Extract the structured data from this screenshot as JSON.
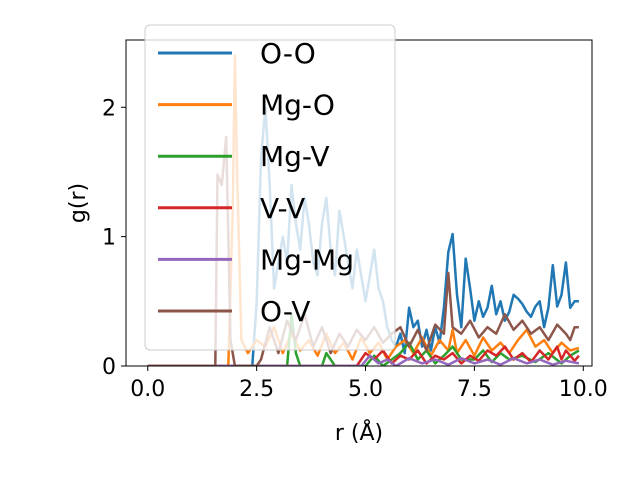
{
  "chart_data": {
    "type": "line",
    "xlabel": "r (Å)",
    "ylabel": "g(r)",
    "xlim": [
      -0.5,
      10.2
    ],
    "ylim": [
      0,
      2.52
    ],
    "xticks": [
      0.0,
      2.5,
      5.0,
      7.5,
      10.0
    ],
    "xtick_labels": [
      "0.0",
      "2.5",
      "5.0",
      "7.5",
      "10.0"
    ],
    "yticks": [
      0,
      1,
      2
    ],
    "ytick_labels": [
      "0",
      "1",
      "2"
    ],
    "grid": false,
    "legend_placement": "top-left",
    "series": [
      {
        "name": "O-O",
        "color": "#1f77b4",
        "points": [
          [
            0,
            0
          ],
          [
            2.4,
            0
          ],
          [
            2.5,
            0.5
          ],
          [
            2.6,
            1.6
          ],
          [
            2.7,
            2.0
          ],
          [
            2.8,
            1.4
          ],
          [
            2.9,
            0.6
          ],
          [
            3.0,
            0.8
          ],
          [
            3.1,
            1.0
          ],
          [
            3.2,
            0.8
          ],
          [
            3.3,
            1.4
          ],
          [
            3.4,
            1.1
          ],
          [
            3.5,
            0.9
          ],
          [
            3.6,
            1.3
          ],
          [
            3.7,
            1.1
          ],
          [
            3.8,
            0.8
          ],
          [
            3.9,
            0.7
          ],
          [
            4.0,
            1.1
          ],
          [
            4.1,
            1.3
          ],
          [
            4.2,
            0.9
          ],
          [
            4.3,
            0.7
          ],
          [
            4.4,
            1.2
          ],
          [
            4.5,
            1.0
          ],
          [
            4.6,
            0.8
          ],
          [
            4.7,
            0.6
          ],
          [
            4.8,
            0.9
          ],
          [
            4.9,
            0.7
          ],
          [
            5.0,
            0.5
          ],
          [
            5.1,
            0.7
          ],
          [
            5.2,
            0.9
          ],
          [
            5.3,
            0.6
          ],
          [
            5.4,
            0.5
          ],
          [
            5.5,
            0.3
          ],
          [
            5.6,
            0.2
          ],
          [
            5.7,
            0.15
          ],
          [
            5.8,
            0.25
          ],
          [
            5.9,
            0.1
          ],
          [
            6.0,
            0.45
          ],
          [
            6.1,
            0.3
          ],
          [
            6.2,
            0.35
          ],
          [
            6.3,
            0.15
          ],
          [
            6.4,
            0.28
          ],
          [
            6.5,
            0.12
          ],
          [
            6.6,
            0.3
          ],
          [
            6.7,
            0.18
          ],
          [
            6.8,
            0.45
          ],
          [
            6.9,
            0.88
          ],
          [
            7.0,
            1.02
          ],
          [
            7.1,
            0.55
          ],
          [
            7.2,
            0.3
          ],
          [
            7.3,
            0.83
          ],
          [
            7.4,
            0.6
          ],
          [
            7.5,
            0.35
          ],
          [
            7.6,
            0.5
          ],
          [
            7.7,
            0.38
          ],
          [
            7.8,
            0.45
          ],
          [
            7.9,
            0.62
          ],
          [
            8.0,
            0.4
          ],
          [
            8.1,
            0.5
          ],
          [
            8.2,
            0.35
          ],
          [
            8.3,
            0.42
          ],
          [
            8.4,
            0.55
          ],
          [
            8.5,
            0.52
          ],
          [
            8.6,
            0.48
          ],
          [
            8.7,
            0.42
          ],
          [
            8.8,
            0.38
          ],
          [
            8.9,
            0.46
          ],
          [
            9.0,
            0.5
          ],
          [
            9.1,
            0.3
          ],
          [
            9.2,
            0.45
          ],
          [
            9.3,
            0.78
          ],
          [
            9.4,
            0.46
          ],
          [
            9.5,
            0.55
          ],
          [
            9.6,
            0.8
          ],
          [
            9.7,
            0.45
          ],
          [
            9.8,
            0.5
          ],
          [
            9.9,
            0.5
          ]
        ]
      },
      {
        "name": "Mg-O",
        "color": "#ff7f0e",
        "points": [
          [
            0,
            0
          ],
          [
            1.85,
            0
          ],
          [
            1.95,
            1.2
          ],
          [
            2.0,
            2.4
          ],
          [
            2.05,
            1.5
          ],
          [
            2.15,
            0.2
          ],
          [
            2.3,
            0.1
          ],
          [
            2.5,
            0.2
          ],
          [
            2.7,
            0.15
          ],
          [
            2.9,
            0.3
          ],
          [
            3.1,
            0.1
          ],
          [
            3.3,
            0.25
          ],
          [
            3.5,
            0.12
          ],
          [
            3.7,
            0.2
          ],
          [
            3.9,
            0.08
          ],
          [
            4.1,
            0.25
          ],
          [
            4.3,
            0.1
          ],
          [
            4.5,
            0.18
          ],
          [
            4.7,
            0.05
          ],
          [
            4.9,
            0.22
          ],
          [
            5.1,
            0.1
          ],
          [
            5.3,
            0.18
          ],
          [
            5.5,
            0.05
          ],
          [
            5.7,
            0.15
          ],
          [
            5.9,
            0.2
          ],
          [
            6.1,
            0.1
          ],
          [
            6.3,
            0.22
          ],
          [
            6.5,
            0.08
          ],
          [
            6.7,
            0.2
          ],
          [
            6.9,
            0.12
          ],
          [
            7.0,
            0.28
          ],
          [
            7.1,
            0.1
          ],
          [
            7.3,
            0.2
          ],
          [
            7.5,
            0.08
          ],
          [
            7.7,
            0.22
          ],
          [
            7.9,
            0.12
          ],
          [
            8.1,
            0.18
          ],
          [
            8.3,
            0.1
          ],
          [
            8.5,
            0.2
          ],
          [
            8.7,
            0.28
          ],
          [
            8.9,
            0.15
          ],
          [
            9.1,
            0.2
          ],
          [
            9.3,
            0.1
          ],
          [
            9.5,
            0.18
          ],
          [
            9.7,
            0.12
          ],
          [
            9.9,
            0.14
          ]
        ]
      },
      {
        "name": "Mg-V",
        "color": "#2ca02c",
        "points": [
          [
            0,
            0
          ],
          [
            3.2,
            0
          ],
          [
            3.3,
            0.4
          ],
          [
            3.4,
            0.1
          ],
          [
            3.5,
            0
          ],
          [
            4.0,
            0
          ],
          [
            4.1,
            0.1
          ],
          [
            4.3,
            0
          ],
          [
            5.0,
            0
          ],
          [
            5.2,
            0.08
          ],
          [
            5.4,
            0
          ],
          [
            5.8,
            0.1
          ],
          [
            6.0,
            0.18
          ],
          [
            6.2,
            0.05
          ],
          [
            6.4,
            0.12
          ],
          [
            6.6,
            0.02
          ],
          [
            6.8,
            0.08
          ],
          [
            7.0,
            0.15
          ],
          [
            7.2,
            0.05
          ],
          [
            7.5,
            0.05
          ],
          [
            7.7,
            0.12
          ],
          [
            7.9,
            0.03
          ],
          [
            8.1,
            0.1
          ],
          [
            8.3,
            0.05
          ],
          [
            8.6,
            0.08
          ],
          [
            8.9,
            0.03
          ],
          [
            9.2,
            0.1
          ],
          [
            9.5,
            0.02
          ],
          [
            9.7,
            0.08
          ],
          [
            9.9,
            0.12
          ]
        ]
      },
      {
        "name": "V-V",
        "color": "#d62728",
        "points": [
          [
            0,
            0
          ],
          [
            4.8,
            0
          ],
          [
            5.0,
            0.1
          ],
          [
            5.2,
            0.05
          ],
          [
            5.4,
            0.12
          ],
          [
            5.6,
            0.02
          ],
          [
            5.8,
            0.08
          ],
          [
            6.0,
            0.05
          ],
          [
            6.2,
            0.12
          ],
          [
            6.4,
            0.02
          ],
          [
            6.6,
            0.08
          ],
          [
            6.8,
            0.05
          ],
          [
            7.0,
            0.1
          ],
          [
            7.2,
            0.02
          ],
          [
            7.4,
            0.08
          ],
          [
            7.6,
            0.04
          ],
          [
            7.8,
            0.12
          ],
          [
            8.0,
            0.08
          ],
          [
            8.2,
            0.15
          ],
          [
            8.4,
            0.05
          ],
          [
            8.6,
            0.1
          ],
          [
            8.8,
            0.03
          ],
          [
            9.0,
            0.12
          ],
          [
            9.2,
            0.05
          ],
          [
            9.4,
            0.15
          ],
          [
            9.5,
            0.05
          ],
          [
            9.6,
            0.12
          ],
          [
            9.8,
            0.04
          ],
          [
            9.9,
            0.08
          ]
        ]
      },
      {
        "name": "Mg-Mg",
        "color": "#9467bd",
        "points": [
          [
            0,
            0
          ],
          [
            4.9,
            0
          ],
          [
            5.1,
            0.08
          ],
          [
            5.3,
            0.02
          ],
          [
            5.5,
            0.05
          ],
          [
            5.7,
            0
          ],
          [
            6.0,
            0.06
          ],
          [
            6.3,
            0.02
          ],
          [
            6.6,
            0.05
          ],
          [
            6.9,
            0.01
          ],
          [
            7.2,
            0.06
          ],
          [
            7.5,
            0.02
          ],
          [
            7.8,
            0.05
          ],
          [
            8.1,
            0.01
          ],
          [
            8.4,
            0.06
          ],
          [
            8.7,
            0.02
          ],
          [
            9.0,
            0.05
          ],
          [
            9.3,
            0.01
          ],
          [
            9.6,
            0.04
          ],
          [
            9.9,
            0.02
          ]
        ]
      },
      {
        "name": "O-V",
        "color": "#8c564b",
        "points": [
          [
            0,
            0
          ],
          [
            1.55,
            0
          ],
          [
            1.6,
            1.48
          ],
          [
            1.7,
            1.4
          ],
          [
            1.8,
            1.77
          ],
          [
            1.9,
            0.2
          ],
          [
            2.0,
            0
          ],
          [
            2.5,
            0
          ],
          [
            2.6,
            0.05
          ],
          [
            2.8,
            0.3
          ],
          [
            3.0,
            0.1
          ],
          [
            3.2,
            0.35
          ],
          [
            3.4,
            0.2
          ],
          [
            3.6,
            0.4
          ],
          [
            3.8,
            0.15
          ],
          [
            4.0,
            0.3
          ],
          [
            4.2,
            0.1
          ],
          [
            4.4,
            0.25
          ],
          [
            4.6,
            0.15
          ],
          [
            4.8,
            0.28
          ],
          [
            5.0,
            0.2
          ],
          [
            5.2,
            0.3
          ],
          [
            5.4,
            0.18
          ],
          [
            5.6,
            0.25
          ],
          [
            5.8,
            0.3
          ],
          [
            6.0,
            0.15
          ],
          [
            6.2,
            0.28
          ],
          [
            6.4,
            0.12
          ],
          [
            6.6,
            0.32
          ],
          [
            6.8,
            0.25
          ],
          [
            6.9,
            0.72
          ],
          [
            7.0,
            0.3
          ],
          [
            7.2,
            0.25
          ],
          [
            7.4,
            0.35
          ],
          [
            7.6,
            0.22
          ],
          [
            7.8,
            0.3
          ],
          [
            8.0,
            0.25
          ],
          [
            8.2,
            0.4
          ],
          [
            8.4,
            0.28
          ],
          [
            8.6,
            0.35
          ],
          [
            8.8,
            0.25
          ],
          [
            9.0,
            0.3
          ],
          [
            9.2,
            0.2
          ],
          [
            9.4,
            0.32
          ],
          [
            9.6,
            0.25
          ],
          [
            9.7,
            0.2
          ],
          [
            9.8,
            0.3
          ],
          [
            9.9,
            0.3
          ]
        ]
      }
    ]
  }
}
